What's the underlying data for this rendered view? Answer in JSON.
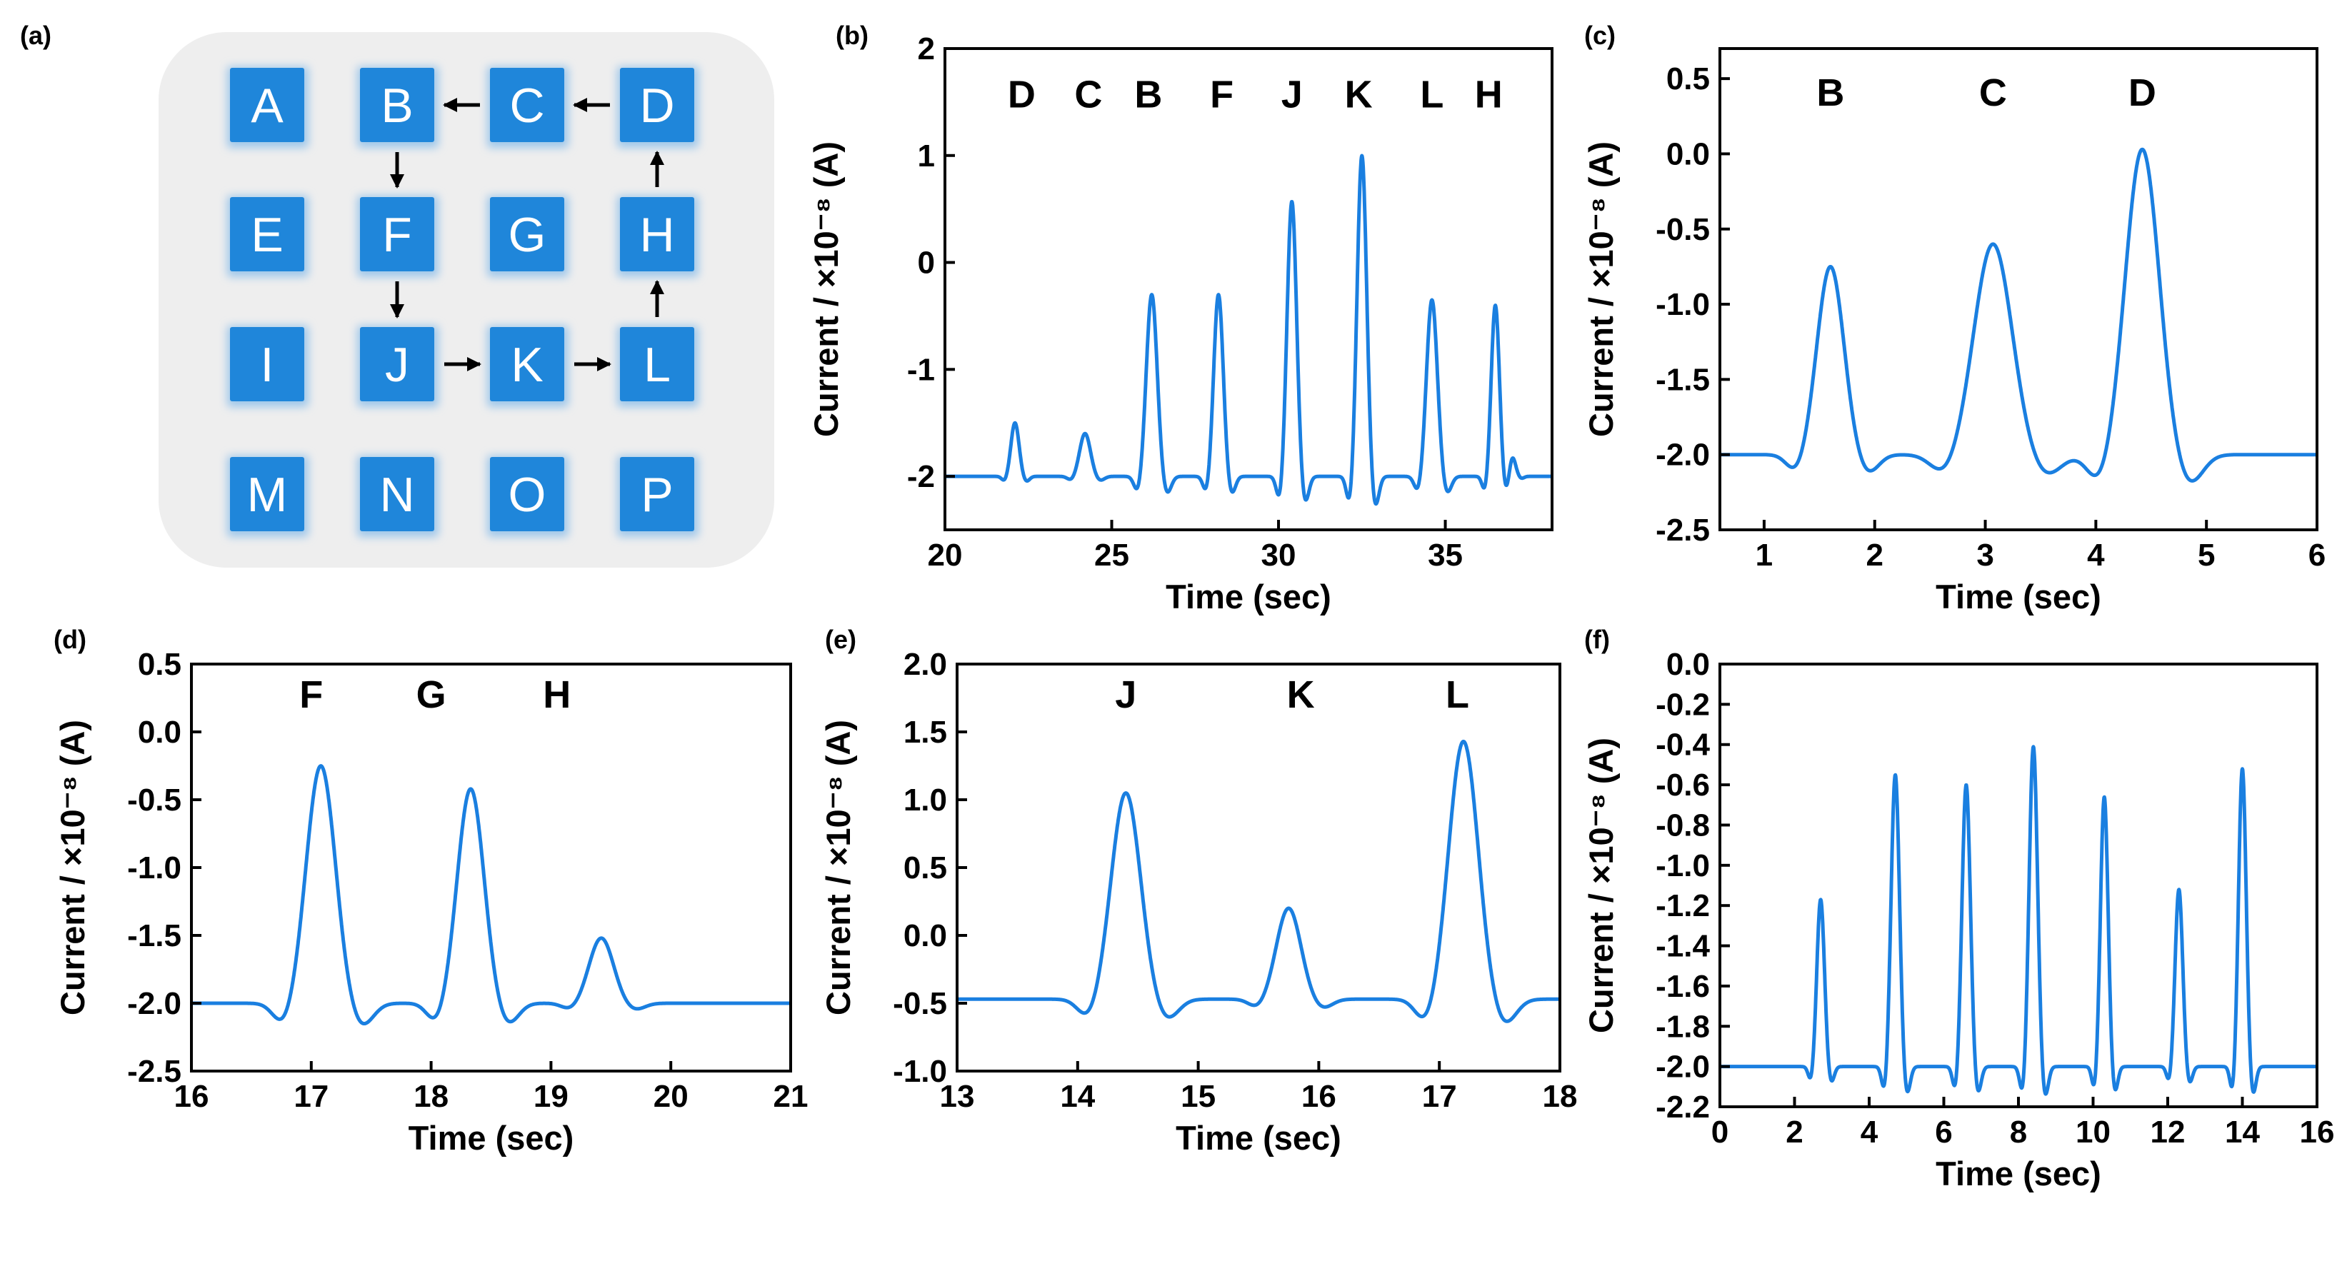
{
  "colors": {
    "line": "#1a7fe0",
    "key_fill": "#1f86da",
    "key_shadow": "#9fc7ea",
    "panel_bg": "#eeeeee",
    "axis": "#000000"
  },
  "panel_a": {
    "label": "(a)",
    "keys": [
      "A",
      "B",
      "C",
      "D",
      "E",
      "F",
      "G",
      "H",
      "I",
      "J",
      "K",
      "L",
      "M",
      "N",
      "O",
      "P"
    ],
    "path": [
      "D",
      "C",
      "B",
      "F",
      "J",
      "K",
      "L",
      "H",
      "D"
    ]
  },
  "chart_data": [
    {
      "label": "(b)",
      "type": "line",
      "xlabel": "Time (sec)",
      "ylabel": "Current / ×10⁻⁸ (A)",
      "xlim": [
        20,
        38.2
      ],
      "ylim": [
        -2.5,
        2
      ],
      "xticks": [
        20,
        25,
        30,
        35
      ],
      "yticks": [
        -2,
        -1,
        0,
        1,
        2
      ],
      "xtick_labels": [
        "20",
        "25",
        "30",
        "35"
      ],
      "ytick_labels": [
        "-2",
        "-1",
        "0",
        "1",
        "2"
      ],
      "baseline": -2.0,
      "xend": 38.2,
      "peaks": [
        {
          "x": 22.1,
          "y": -1.5,
          "w": 0.12,
          "label": ""
        },
        {
          "x": 24.2,
          "y": -1.6,
          "w": 0.16,
          "label": ""
        },
        {
          "x": 26.2,
          "y": -0.3,
          "w": 0.16,
          "label": ""
        },
        {
          "x": 28.2,
          "y": -0.3,
          "w": 0.14,
          "label": ""
        },
        {
          "x": 30.4,
          "y": 0.57,
          "w": 0.14,
          "label": ""
        },
        {
          "x": 32.5,
          "y": 1.0,
          "w": 0.14,
          "label": ""
        },
        {
          "x": 34.6,
          "y": -0.35,
          "w": 0.16,
          "label": ""
        },
        {
          "x": 36.5,
          "y": -0.4,
          "w": 0.12,
          "label": ""
        },
        {
          "x": 37.0,
          "y": -1.8,
          "w": 0.1,
          "label": ""
        }
      ],
      "annotations": [
        {
          "text": "D",
          "x": 22.3,
          "y": 1.45
        },
        {
          "text": "C",
          "x": 24.3,
          "y": 1.45
        },
        {
          "text": "B",
          "x": 26.1,
          "y": 1.45
        },
        {
          "text": "F",
          "x": 28.3,
          "y": 1.45
        },
        {
          "text": "J",
          "x": 30.4,
          "y": 1.45
        },
        {
          "text": "K",
          "x": 32.4,
          "y": 1.45
        },
        {
          "text": "L",
          "x": 34.6,
          "y": 1.45
        },
        {
          "text": "H",
          "x": 36.3,
          "y": 1.45
        }
      ]
    },
    {
      "label": "(c)",
      "type": "line",
      "xlabel": "Time (sec)",
      "ylabel": "Current / ×10⁻⁸ (A)",
      "xlim": [
        0.6,
        6
      ],
      "ylim": [
        -2.5,
        0.7
      ],
      "xticks": [
        1,
        2,
        3,
        4,
        5,
        6
      ],
      "yticks": [
        -2.5,
        -2.0,
        -1.5,
        -1.0,
        -0.5,
        0.0,
        0.5
      ],
      "xtick_labels": [
        "1",
        "2",
        "3",
        "4",
        "5",
        "6"
      ],
      "ytick_labels": [
        "-2.5",
        "-2.0",
        "-1.5",
        "-1.0",
        "-0.5",
        "0.0",
        "0.5"
      ],
      "baseline": -2.0,
      "xend": 6,
      "peaks": [
        {
          "x": 1.6,
          "y": -0.75,
          "w": 0.12,
          "label": "B"
        },
        {
          "x": 3.07,
          "y": -0.6,
          "w": 0.17,
          "label": "C"
        },
        {
          "x": 4.42,
          "y": 0.03,
          "w": 0.15,
          "label": "D"
        }
      ],
      "annotations": [
        {
          "text": "B",
          "x": 1.6,
          "y": 0.32
        },
        {
          "text": "C",
          "x": 3.07,
          "y": 0.32
        },
        {
          "text": "D",
          "x": 4.42,
          "y": 0.32
        }
      ]
    },
    {
      "label": "(d)",
      "type": "line",
      "xlabel": "Time (sec)",
      "ylabel": "Current / ×10⁻⁸ (A)",
      "xlim": [
        16,
        21
      ],
      "ylim": [
        -2.5,
        0.5
      ],
      "xticks": [
        16,
        17,
        18,
        19,
        20,
        21
      ],
      "yticks": [
        -2.5,
        -2.0,
        -1.5,
        -1.0,
        -0.5,
        0.0,
        0.5
      ],
      "xtick_labels": [
        "16",
        "17",
        "18",
        "19",
        "20",
        "21"
      ],
      "ytick_labels": [
        "-2.5",
        "-2.0",
        "-1.5",
        "-1.0",
        "-0.5",
        "0.0",
        "0.5"
      ],
      "baseline": -2.0,
      "xend": 21,
      "peaks": [
        {
          "x": 17.08,
          "y": -0.25,
          "w": 0.12,
          "label": "F"
        },
        {
          "x": 18.33,
          "y": -0.42,
          "w": 0.11,
          "label": "G"
        },
        {
          "x": 19.42,
          "y": -1.52,
          "w": 0.1,
          "label": "H"
        }
      ],
      "annotations": [
        {
          "text": "F",
          "x": 17.0,
          "y": 0.18
        },
        {
          "text": "G",
          "x": 18.0,
          "y": 0.18
        },
        {
          "text": "H",
          "x": 19.05,
          "y": 0.18
        }
      ]
    },
    {
      "label": "(e)",
      "type": "line",
      "xlabel": "Time (sec)",
      "ylabel": "Current / ×10⁻⁸ (A)",
      "xlim": [
        13,
        18
      ],
      "ylim": [
        -1.0,
        2.0
      ],
      "xticks": [
        13,
        14,
        15,
        16,
        17,
        18
      ],
      "yticks": [
        -1.0,
        -0.5,
        0.0,
        0.5,
        1.0,
        1.5,
        2.0
      ],
      "xtick_labels": [
        "13",
        "14",
        "15",
        "16",
        "17",
        "18"
      ],
      "ytick_labels": [
        "-1.0",
        "-0.5",
        "0.0",
        "0.5",
        "1.0",
        "1.5",
        "2.0"
      ],
      "baseline": -0.47,
      "xend": 18,
      "peaks": [
        {
          "x": 14.4,
          "y": 1.05,
          "w": 0.12,
          "label": "J"
        },
        {
          "x": 15.75,
          "y": 0.2,
          "w": 0.1,
          "label": "K"
        },
        {
          "x": 17.2,
          "y": 1.43,
          "w": 0.12,
          "label": "L"
        }
      ],
      "annotations": [
        {
          "text": "J",
          "x": 14.4,
          "y": 1.68
        },
        {
          "text": "K",
          "x": 15.85,
          "y": 1.68
        },
        {
          "text": "L",
          "x": 17.15,
          "y": 1.68
        }
      ]
    },
    {
      "label": "(f)",
      "type": "line",
      "xlabel": "Time (sec)",
      "ylabel": "Current / ×10⁻⁸ (A)",
      "xlim": [
        0,
        16
      ],
      "ylim": [
        -2.2,
        0.0
      ],
      "xticks": [
        0,
        2,
        4,
        6,
        8,
        10,
        12,
        14,
        16
      ],
      "yticks": [
        -2.2,
        -2.0,
        -1.8,
        -1.6,
        -1.4,
        -1.2,
        -1.0,
        -0.8,
        -0.6,
        -0.4,
        -0.2,
        0.0
      ],
      "xtick_labels": [
        "0",
        "2",
        "4",
        "6",
        "8",
        "10",
        "12",
        "14",
        "16"
      ],
      "ytick_labels": [
        "-2.2",
        "-2.0",
        "-1.8",
        "-1.6",
        "-1.4",
        "-1.2",
        "-1.0",
        "-0.8",
        "-0.6",
        "-0.4",
        "-0.2",
        "0.0"
      ],
      "baseline": -2.0,
      "xend": 16,
      "peaks": [
        {
          "x": 2.7,
          "y": -1.17,
          "w": 0.1,
          "label": ""
        },
        {
          "x": 4.7,
          "y": -0.55,
          "w": 0.11,
          "label": ""
        },
        {
          "x": 6.6,
          "y": -0.6,
          "w": 0.11,
          "label": ""
        },
        {
          "x": 8.4,
          "y": -0.41,
          "w": 0.11,
          "label": ""
        },
        {
          "x": 10.3,
          "y": -0.66,
          "w": 0.1,
          "label": ""
        },
        {
          "x": 12.3,
          "y": -1.12,
          "w": 0.1,
          "label": ""
        },
        {
          "x": 14.0,
          "y": -0.52,
          "w": 0.1,
          "label": ""
        }
      ],
      "annotations": []
    }
  ]
}
